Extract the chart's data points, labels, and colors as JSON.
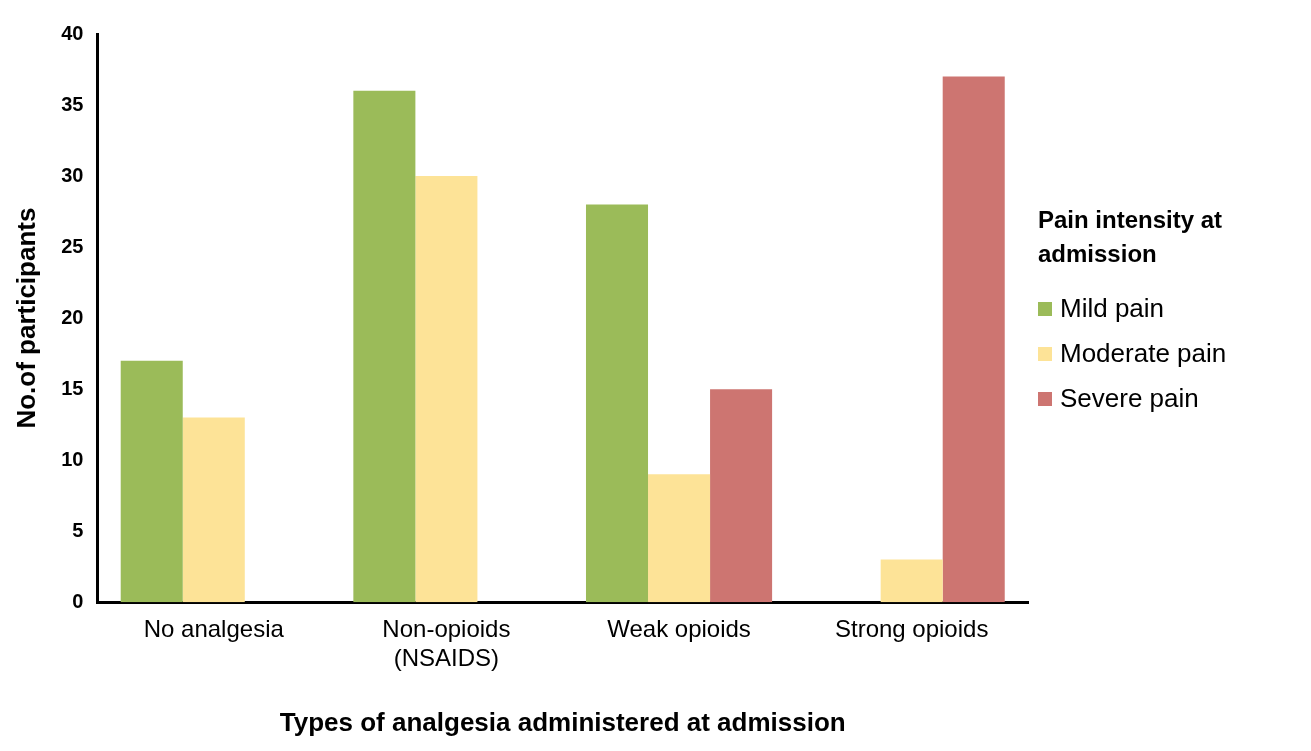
{
  "chart_data": {
    "type": "bar",
    "xlabel": "Types of analgesia administered at admission",
    "ylabel": "No.of participants",
    "legend_title": "Pain intensity  at admission",
    "categories": [
      "No analgesia",
      "Non-opioids\n(NSAIDS)",
      "Weak opioids",
      "Strong opioids"
    ],
    "series": [
      {
        "name": "Mild pain",
        "color": "#9bbb59",
        "values": [
          17,
          36,
          28,
          0
        ]
      },
      {
        "name": "Moderate pain",
        "color": "#fde397",
        "values": [
          13,
          30,
          9,
          3
        ]
      },
      {
        "name": "Severe pain",
        "color": "#cd7571",
        "values": [
          0,
          0,
          15,
          37
        ]
      }
    ],
    "ylim": [
      0,
      40
    ],
    "yticks": [
      0,
      5,
      10,
      15,
      20,
      25,
      30,
      35,
      40
    ],
    "grid": false,
    "legend": "right"
  }
}
